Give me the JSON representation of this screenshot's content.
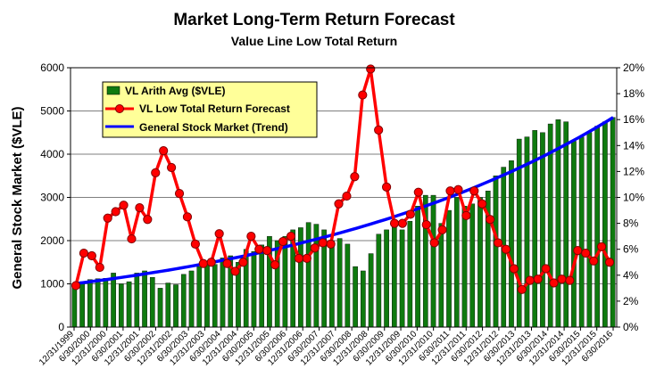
{
  "chart_data": {
    "type": "bar+line",
    "title": "Market Long-Term Return Forecast",
    "subtitle": "Value Line Low Total Return",
    "ylabel": "General Stock Market ($VLE)",
    "y_left_ticks": [
      "0",
      "1000",
      "2000",
      "3000",
      "4000",
      "5000",
      "6000"
    ],
    "y_right_ticks": [
      "0%",
      "2%",
      "4%",
      "6%",
      "8%",
      "10%",
      "12%",
      "14%",
      "16%",
      "18%",
      "20%"
    ],
    "ylim_left": [
      0,
      6000
    ],
    "ylim_right": [
      0,
      20
    ],
    "x_tick_labels": [
      "12/31/1999",
      "6/30/2000",
      "12/31/2000",
      "6/30/2001",
      "12/31/2001",
      "6/30/2002",
      "12/31/2002",
      "6/30/2003",
      "12/31/2003",
      "6/30/2004",
      "12/31/2004",
      "6/30/2005",
      "12/31/2005",
      "6/30/2006",
      "12/31/2006",
      "6/30/2007",
      "12/31/2007",
      "6/30/2008",
      "12/31/2008",
      "6/30/2009",
      "12/31/2009",
      "6/30/2010",
      "12/31/2010",
      "6/30/2011",
      "12/31/2011",
      "6/30/2012",
      "12/31/2012",
      "6/30/2013",
      "12/31/2013",
      "6/30/2014",
      "12/31/2014",
      "6/30/2015",
      "12/31/2015",
      "6/30/2016"
    ],
    "legend_position": "top-left",
    "series": [
      {
        "name": "VL Arith Avg ($VLE)",
        "kind": "bar",
        "axis": "left",
        "color": "#0f7a0f",
        "values": [
          1000,
          1050,
          1100,
          1120,
          1130,
          1250,
          1000,
          1050,
          1250,
          1300,
          1150,
          900,
          1020,
          980,
          1220,
          1300,
          1400,
          1450,
          1450,
          1600,
          1650,
          1500,
          1800,
          1750,
          1900,
          2100,
          2000,
          2100,
          2250,
          2300,
          2420,
          2380,
          2250,
          2000,
          2050,
          1920,
          1400,
          1300,
          1700,
          2150,
          2250,
          2350,
          2250,
          2450,
          2800,
          3050,
          3050,
          2400,
          2700,
          3000,
          2800,
          2850,
          3000,
          3150,
          3500,
          3700,
          3850,
          4350,
          4400,
          4550,
          4500,
          4700,
          4800,
          4750,
          4300,
          4400,
          4500,
          4650,
          4750,
          4850
        ]
      },
      {
        "name": "VL Low Total Return Forecast",
        "kind": "line-markers",
        "axis": "right",
        "color": "#ff0000",
        "values": [
          3.2,
          5.7,
          5.5,
          4.6,
          8.4,
          8.9,
          9.4,
          6.8,
          9.2,
          8.3,
          11.9,
          13.6,
          12.3,
          10.3,
          8.5,
          6.4,
          4.9,
          5.0,
          7.2,
          4.9,
          4.3,
          5.0,
          7.0,
          6.0,
          5.9,
          4.8,
          6.6,
          7.0,
          5.3,
          5.3,
          6.1,
          6.5,
          6.4,
          9.5,
          10.1,
          11.6,
          17.9,
          19.9,
          15.2,
          10.8,
          8.0,
          8.0,
          8.7,
          10.4,
          7.9,
          6.5,
          7.5,
          10.5,
          10.6,
          8.6,
          10.5,
          9.5,
          8.3,
          6.5,
          6.0,
          4.5,
          2.9,
          3.6,
          3.7,
          4.5,
          3.4,
          3.7,
          3.6,
          5.9,
          5.7,
          5.1,
          6.2,
          5.0
        ]
      },
      {
        "name": "General Stock Market (Trend)",
        "kind": "line",
        "axis": "left",
        "color": "#0000ff",
        "start": 1000,
        "end": 4850
      }
    ]
  }
}
